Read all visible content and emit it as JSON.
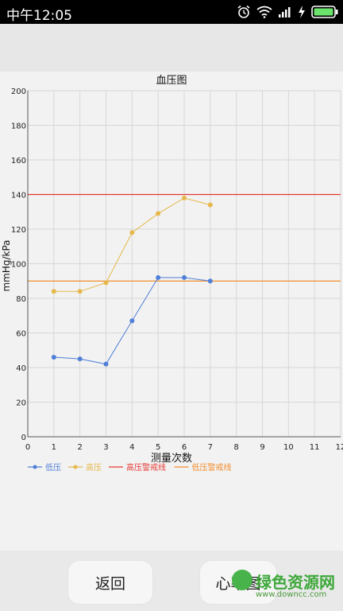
{
  "status_bar": {
    "time": "中午12:05",
    "icons": [
      "alarm-icon",
      "wifi-icon",
      "signal-icon",
      "charging-icon",
      "battery-icon"
    ]
  },
  "buttons": {
    "back_label": "返回",
    "heart_label": "心率图"
  },
  "watermark": {
    "text": "绿色资源网",
    "url": "www.downcc.com"
  },
  "colors": {
    "low": "#4f7fd8",
    "high": "#e6b84a",
    "high_warn": "#e53935",
    "low_warn": "#f28c2a"
  },
  "chart_data": {
    "type": "line",
    "title": "血压图",
    "xlabel": "测量次数",
    "ylabel": "mmHg/kPa",
    "xlim": [
      0,
      12
    ],
    "ylim": [
      0,
      200
    ],
    "x_ticks": [
      0,
      1,
      2,
      3,
      4,
      5,
      6,
      7,
      8,
      9,
      10,
      11,
      12
    ],
    "y_ticks": [
      0,
      20,
      40,
      60,
      80,
      100,
      120,
      140,
      160,
      180,
      200
    ],
    "grid": true,
    "legend_position": "bottom-left",
    "series": [
      {
        "name": "低压",
        "x": [
          1,
          2,
          3,
          4,
          5,
          6,
          7
        ],
        "values": [
          46,
          45,
          42,
          67,
          92,
          92,
          90
        ],
        "color": "#4f7fd8"
      },
      {
        "name": "高压",
        "x": [
          1,
          2,
          3,
          4,
          5,
          6,
          7
        ],
        "values": [
          84,
          84,
          89,
          118,
          129,
          138,
          134
        ],
        "color": "#e6b84a"
      }
    ],
    "reference_lines": [
      {
        "name": "高压警戒线",
        "value": 140,
        "color": "#e53935"
      },
      {
        "name": "低压警戒线",
        "value": 90,
        "color": "#f28c2a"
      }
    ]
  }
}
